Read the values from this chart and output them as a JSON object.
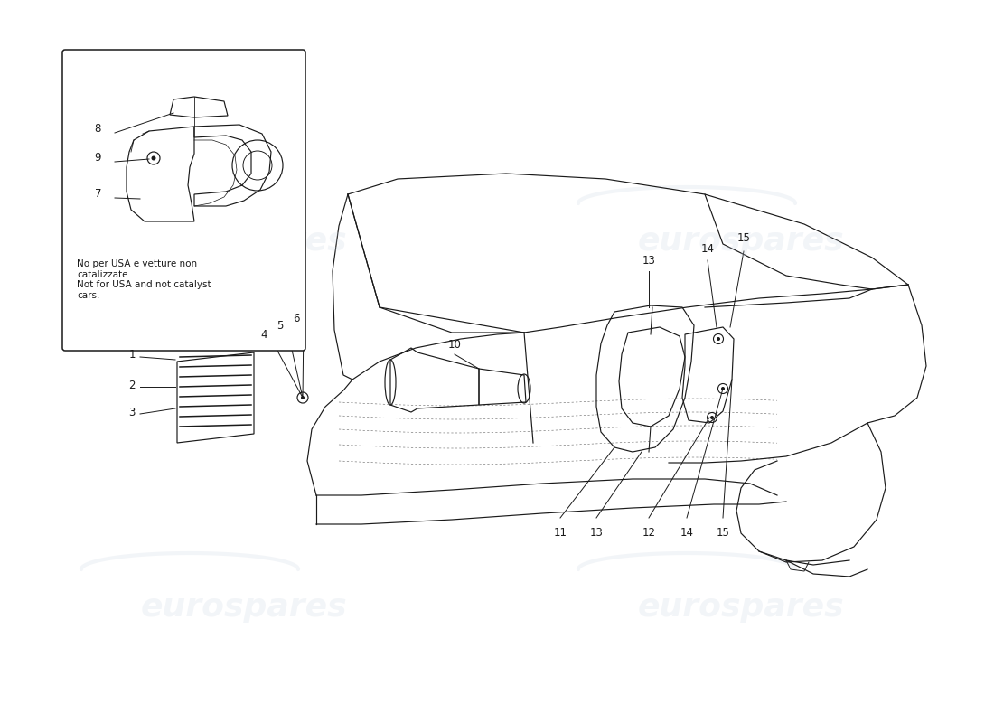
{
  "bg_color": "#ffffff",
  "line_color": "#1a1a1a",
  "watermark_text": "eurospares",
  "watermark_color": "#c8d2e0",
  "watermark_alpha": 0.22,
  "watermark_fontsize": 26,
  "inset_note": "No per USA e vetture non\ncatalizzate.\nNot for USA and not catalyst\ncars.",
  "label_fontsize": 8.5,
  "lw": 0.85,
  "figsize": [
    11.0,
    8.0
  ],
  "dpi": 100
}
